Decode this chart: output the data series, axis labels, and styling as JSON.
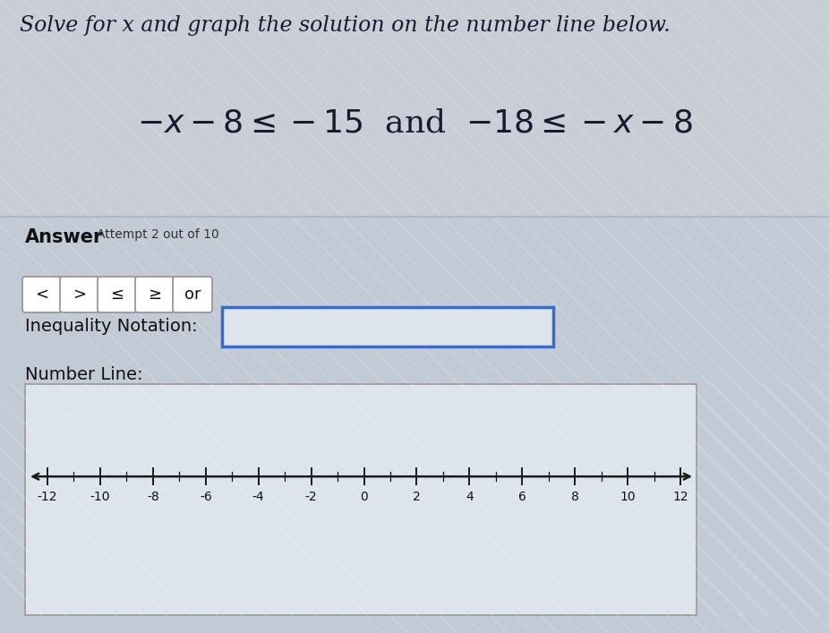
{
  "title_line": "Solve for x and graph the solution on the number line below.",
  "equation": "$-x-8\\leq-15$  and  $-18\\leq-x-8$",
  "answer_label": "Answer",
  "attempt_label": "Attempt 2 out of 10",
  "buttons": [
    "<",
    ">",
    "≤",
    "≥",
    "or"
  ],
  "inequality_label": "Inequality Notation:",
  "number_line_label": "Number Line:",
  "number_line_ticks": [
    -12,
    -10,
    -8,
    -6,
    -4,
    -2,
    0,
    2,
    4,
    6,
    8,
    10,
    12
  ],
  "bg_top": "#c8cdd6",
  "bg_answer": "#c2cad6",
  "number_line_bg": "#dde4ec",
  "button_bg": "#ffffff",
  "button_border": "#999999",
  "input_box_border": "#3a6bc7",
  "input_box_bg": "#dde4ec",
  "number_line_box_border": "#999999",
  "divider_color": "#b0b8c8",
  "title_fontsize": 17,
  "eq_fontsize": 26,
  "label_fontsize": 14,
  "small_fontsize": 10,
  "button_fontsize": 13,
  "tick_fontsize": 10,
  "stripe_color": "#ffffff",
  "stripe_alpha": 0.12
}
